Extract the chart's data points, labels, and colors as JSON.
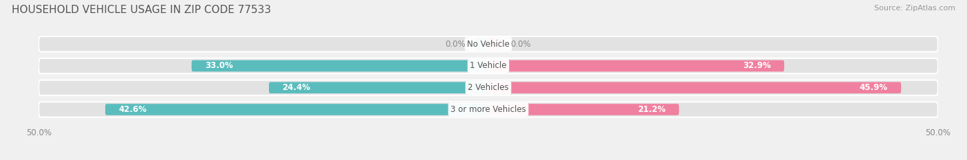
{
  "title": "HOUSEHOLD VEHICLE USAGE IN ZIP CODE 77533",
  "source": "Source: ZipAtlas.com",
  "categories": [
    "No Vehicle",
    "1 Vehicle",
    "2 Vehicles",
    "3 or more Vehicles"
  ],
  "owner_values": [
    0.0,
    33.0,
    24.4,
    42.6
  ],
  "renter_values": [
    0.0,
    32.9,
    45.9,
    21.2
  ],
  "owner_color": "#5BBCBD",
  "renter_color": "#F080A0",
  "bar_height": 0.52,
  "xlim": [
    -50,
    50
  ],
  "background_color": "#f0f0f0",
  "bar_bg_color": "#e2e2e2",
  "title_fontsize": 11,
  "source_fontsize": 8,
  "label_fontsize": 8.5,
  "legend_fontsize": 8.5,
  "tick_fontsize": 8.5,
  "figsize": [
    14.06,
    2.33
  ],
  "dpi": 100
}
